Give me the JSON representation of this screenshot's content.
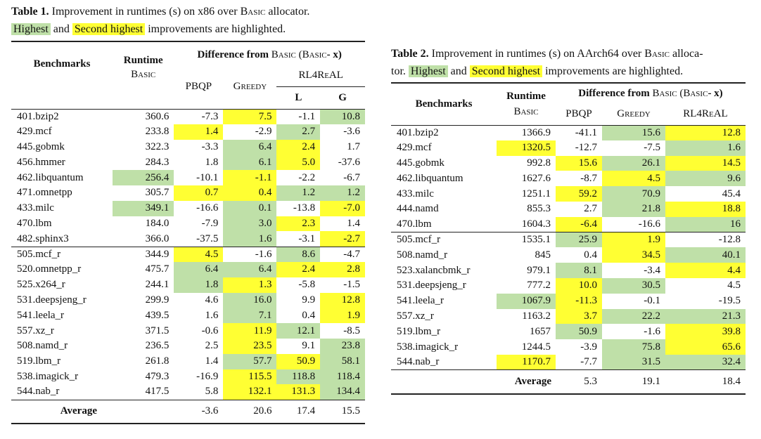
{
  "table1": {
    "caption_label": "Table 1.",
    "caption_text": " Improvement in runtimes (s) on x86 over ",
    "caption_basic": "Basic",
    "caption_end": " allocator.",
    "caption_highest": "Highest",
    "caption_and": " and ",
    "caption_second": "Second highest",
    "caption_tail": " improvements are highlighted.",
    "header": {
      "benchmarks": "Benchmarks",
      "runtime": "Runtime",
      "runtime_sub": "Basic",
      "diff": "Difference from ",
      "diff_basic": "Basic",
      "diff_paren": " (",
      "diff_basic2": "Basic",
      "diff_tail": "- x)",
      "pbqp": "PBQP",
      "greedy": "Greedy",
      "rl4real": "RL4ReAL",
      "l": "L",
      "g": "G"
    },
    "group1": [
      {
        "name": "401.bzip2",
        "runtime": "360.6",
        "pbqp": "-7.3",
        "greedy": "7.5",
        "l": "-1.1",
        "g": "10.8",
        "hl": {
          "greedy": "y",
          "g": "g"
        }
      },
      {
        "name": "429.mcf",
        "runtime": "233.8",
        "pbqp": "1.4",
        "greedy": "-2.9",
        "l": "2.7",
        "g": "-3.6",
        "hl": {
          "pbqp": "y",
          "l": "g"
        }
      },
      {
        "name": "445.gobmk",
        "runtime": "322.3",
        "pbqp": "-3.3",
        "greedy": "6.4",
        "l": "2.4",
        "g": "1.7",
        "hl": {
          "greedy": "g",
          "l": "y"
        }
      },
      {
        "name": "456.hmmer",
        "runtime": "284.3",
        "pbqp": "1.8",
        "greedy": "6.1",
        "l": "5.0",
        "g": "-37.6",
        "hl": {
          "greedy": "g",
          "l": "y"
        }
      },
      {
        "name": "462.libquantum",
        "runtime": "256.4",
        "pbqp": "-10.1",
        "greedy": "-1.1",
        "l": "-2.2",
        "g": "-6.7",
        "hl": {
          "runtime": "g",
          "greedy": "y"
        }
      },
      {
        "name": "471.omnetpp",
        "runtime": "305.7",
        "pbqp": "0.7",
        "greedy": "0.4",
        "l": "1.2",
        "g": "1.2",
        "hl": {
          "pbqp": "y",
          "greedy": "y",
          "l": "g",
          "g": "g"
        }
      },
      {
        "name": "433.milc",
        "runtime": "349.1",
        "pbqp": "-16.6",
        "greedy": "0.1",
        "l": "-13.8",
        "g": "-7.0",
        "hl": {
          "runtime": "g",
          "greedy": "g",
          "g": "y"
        }
      },
      {
        "name": "470.lbm",
        "runtime": "184.0",
        "pbqp": "-7.9",
        "greedy": "3.0",
        "l": "2.3",
        "g": "1.4",
        "hl": {
          "greedy": "g",
          "l": "y"
        }
      },
      {
        "name": "482.sphinx3",
        "runtime": "366.0",
        "pbqp": "-37.5",
        "greedy": "1.6",
        "l": "-3.1",
        "g": "-2.7",
        "hl": {
          "greedy": "g",
          "g": "y"
        }
      }
    ],
    "group2": [
      {
        "name": "505.mcf_r",
        "runtime": "344.9",
        "pbqp": "4.5",
        "greedy": "-1.6",
        "l": "8.6",
        "g": "-4.7",
        "hl": {
          "pbqp": "y",
          "l": "g"
        }
      },
      {
        "name": "520.omnetpp_r",
        "runtime": "475.7",
        "pbqp": "6.4",
        "greedy": "6.4",
        "l": "2.4",
        "g": "2.8",
        "hl": {
          "pbqp": "g",
          "greedy": "g",
          "l": "y",
          "g": "y"
        }
      },
      {
        "name": "525.x264_r",
        "runtime": "244.1",
        "pbqp": "1.8",
        "greedy": "1.3",
        "l": "-5.8",
        "g": "-1.5",
        "hl": {
          "pbqp": "g",
          "greedy": "y"
        }
      },
      {
        "name": "531.deepsjeng_r",
        "runtime": "299.9",
        "pbqp": "4.6",
        "greedy": "16.0",
        "l": "9.9",
        "g": "12.8",
        "hl": {
          "greedy": "g",
          "g": "y"
        }
      },
      {
        "name": "541.leela_r",
        "runtime": "439.5",
        "pbqp": "1.6",
        "greedy": "7.1",
        "l": "0.4",
        "g": "1.9",
        "hl": {
          "greedy": "g",
          "g": "y"
        }
      },
      {
        "name": "557.xz_r",
        "runtime": "371.5",
        "pbqp": "-0.6",
        "greedy": "11.9",
        "l": "12.1",
        "g": "-8.5",
        "hl": {
          "greedy": "y",
          "l": "g"
        }
      },
      {
        "name": "508.namd_r",
        "runtime": "236.5",
        "pbqp": "2.5",
        "greedy": "23.5",
        "l": "9.1",
        "g": "23.8",
        "hl": {
          "greedy": "y",
          "g": "g"
        }
      },
      {
        "name": "519.lbm_r",
        "runtime": "261.8",
        "pbqp": "1.4",
        "greedy": "57.7",
        "l": "50.9",
        "g": "58.1",
        "hl": {
          "greedy": "g",
          "l": "y",
          "g": "g"
        }
      },
      {
        "name": "538.imagick_r",
        "runtime": "479.3",
        "pbqp": "-16.9",
        "greedy": "115.5",
        "l": "118.8",
        "g": "118.4",
        "hl": {
          "greedy": "y",
          "l": "g",
          "g": "g"
        }
      },
      {
        "name": "544.nab_r",
        "runtime": "417.5",
        "pbqp": "5.8",
        "greedy": "132.1",
        "l": "131.3",
        "g": "134.4",
        "hl": {
          "greedy": "y",
          "l": "y",
          "g": "g"
        }
      }
    ],
    "average": {
      "label": "Average",
      "pbqp": "-3.6",
      "greedy": "20.6",
      "l": "17.4",
      "g": "15.5"
    }
  },
  "table2": {
    "caption_label": "Table 2.",
    "caption_text": " Improvement in runtimes (s) on AArch64 over ",
    "caption_basic": "Basic",
    "caption_end": " alloca-",
    "caption_line2": "tor. ",
    "caption_highest": "Highest",
    "caption_and": " and ",
    "caption_second": "Second highest",
    "caption_tail": " improvements are highlighted.",
    "header": {
      "benchmarks": "Benchmarks",
      "runtime": "Runtime",
      "runtime_sub": "Basic",
      "diff": "Difference from ",
      "diff_basic": "Basic",
      "diff_paren": " (",
      "diff_basic2": "Basic",
      "diff_tail": "- x)",
      "pbqp": "PBQP",
      "greedy": "Greedy",
      "rl4real": "RL4ReAL"
    },
    "group1": [
      {
        "name": "401.bzip2",
        "runtime": "1366.9",
        "pbqp": "-41.1",
        "greedy": "15.6",
        "rl": "12.8",
        "hl": {
          "greedy": "g",
          "rl": "y"
        }
      },
      {
        "name": "429.mcf",
        "runtime": "1320.5",
        "pbqp": "-12.7",
        "greedy": "-7.5",
        "rl": "1.6",
        "hl": {
          "runtime": "y",
          "rl": "g"
        }
      },
      {
        "name": "445.gobmk",
        "runtime": "992.8",
        "pbqp": "15.6",
        "greedy": "26.1",
        "rl": "14.5",
        "hl": {
          "pbqp": "y",
          "greedy": "g",
          "rl": "y"
        }
      },
      {
        "name": "462.libquantum",
        "runtime": "1627.6",
        "pbqp": "-8.7",
        "greedy": "4.5",
        "rl": "9.6",
        "hl": {
          "greedy": "y",
          "rl": "g"
        }
      },
      {
        "name": "433.milc",
        "runtime": "1251.1",
        "pbqp": "59.2",
        "greedy": "70.9",
        "rl": "45.4",
        "hl": {
          "pbqp": "y",
          "greedy": "g"
        }
      },
      {
        "name": "444.namd",
        "runtime": "855.3",
        "pbqp": "2.7",
        "greedy": "21.8",
        "rl": "18.8",
        "hl": {
          "greedy": "g",
          "rl": "y"
        }
      },
      {
        "name": "470.lbm",
        "runtime": "1604.3",
        "pbqp": "-6.4",
        "greedy": "-16.6",
        "rl": "16",
        "hl": {
          "pbqp": "y",
          "rl": "g"
        }
      }
    ],
    "group2": [
      {
        "name": "505.mcf_r",
        "runtime": "1535.1",
        "pbqp": "25.9",
        "greedy": "1.9",
        "rl": "-12.8",
        "hl": {
          "pbqp": "g",
          "greedy": "y"
        }
      },
      {
        "name": "508.namd_r",
        "runtime": "845",
        "pbqp": "0.4",
        "greedy": "34.5",
        "rl": "40.1",
        "hl": {
          "greedy": "y",
          "rl": "g"
        }
      },
      {
        "name": "523.xalancbmk_r",
        "runtime": "979.1",
        "pbqp": "8.1",
        "greedy": "-3.4",
        "rl": "4.4",
        "hl": {
          "pbqp": "g",
          "rl": "y"
        }
      },
      {
        "name": "531.deepsjeng_r",
        "runtime": "777.2",
        "pbqp": "10.0",
        "greedy": "30.5",
        "rl": "4.5",
        "hl": {
          "pbqp": "y",
          "greedy": "g"
        }
      },
      {
        "name": "541.leela_r",
        "runtime": "1067.9",
        "pbqp": "-11.3",
        "greedy": "-0.1",
        "rl": "-19.5",
        "hl": {
          "runtime": "g",
          "pbqp": "y"
        }
      },
      {
        "name": "557.xz_r",
        "runtime": "1163.2",
        "pbqp": "3.7",
        "greedy": "22.2",
        "rl": "21.3",
        "hl": {
          "pbqp": "y",
          "greedy": "g",
          "rl": "g"
        }
      },
      {
        "name": "519.lbm_r",
        "runtime": "1657",
        "pbqp": "50.9",
        "greedy": "-1.6",
        "rl": "39.8",
        "hl": {
          "pbqp": "g",
          "rl": "y"
        }
      },
      {
        "name": "538.imagick_r",
        "runtime": "1244.5",
        "pbqp": "-3.9",
        "greedy": "75.8",
        "rl": "65.6",
        "hl": {
          "greedy": "g",
          "rl": "y"
        }
      },
      {
        "name": "544.nab_r",
        "runtime": "1170.7",
        "pbqp": "-7.7",
        "greedy": "31.5",
        "rl": "32.4",
        "hl": {
          "runtime": "y",
          "greedy": "g",
          "rl": "g"
        }
      }
    ],
    "average": {
      "label": "Average",
      "pbqp": "5.3",
      "greedy": "19.1",
      "rl": "18.4"
    }
  },
  "colors": {
    "highest": "#bfe0a8",
    "second_highest": "#ffff33"
  }
}
